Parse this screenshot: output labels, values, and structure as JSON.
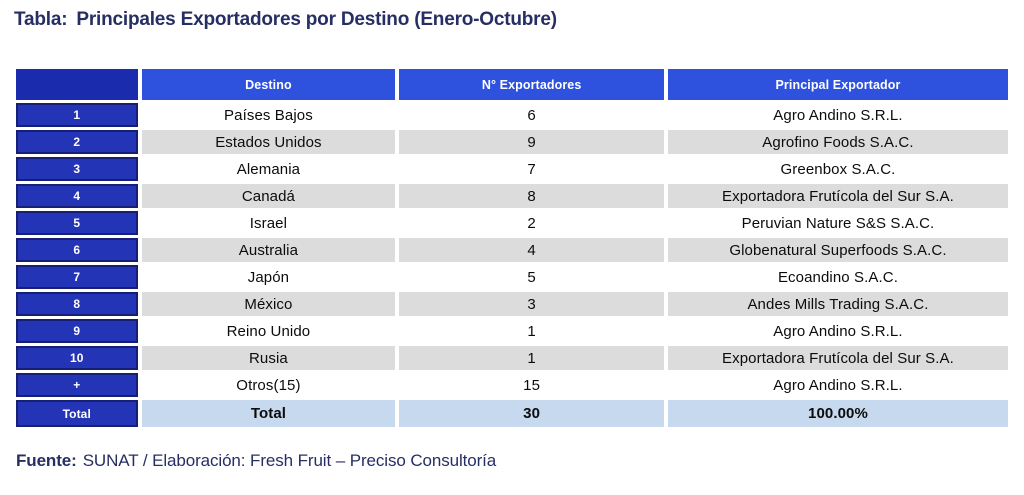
{
  "title": {
    "prefix": "Tabla:",
    "text": "Principales Exportadores por Destino (Enero-Octubre)"
  },
  "table": {
    "columns": [
      "",
      "Destino",
      "N° Exportadores",
      "Principal Exportador"
    ],
    "rows": [
      {
        "rank": "1",
        "destino": "Países Bajos",
        "exportadores": "6",
        "principal": "Agro Andino S.R.L."
      },
      {
        "rank": "2",
        "destino": "Estados Unidos",
        "exportadores": "9",
        "principal": "Agrofino Foods S.A.C."
      },
      {
        "rank": "3",
        "destino": "Alemania",
        "exportadores": "7",
        "principal": "Greenbox S.A.C."
      },
      {
        "rank": "4",
        "destino": "Canadá",
        "exportadores": "8",
        "principal": "Exportadora Frutícola del Sur S.A."
      },
      {
        "rank": "5",
        "destino": "Israel",
        "exportadores": "2",
        "principal": "Peruvian Nature S&S S.A.C."
      },
      {
        "rank": "6",
        "destino": "Australia",
        "exportadores": "4",
        "principal": "Globenatural Superfoods S.A.C."
      },
      {
        "rank": "7",
        "destino": "Japón",
        "exportadores": "5",
        "principal": "Ecoandino S.A.C."
      },
      {
        "rank": "8",
        "destino": "México",
        "exportadores": "3",
        "principal": "Andes Mills Trading S.A.C."
      },
      {
        "rank": "9",
        "destino": "Reino Unido",
        "exportadores": "1",
        "principal": "Agro Andino S.R.L."
      },
      {
        "rank": "10",
        "destino": "Rusia",
        "exportadores": "1",
        "principal": "Exportadora Frutícola del Sur S.A."
      },
      {
        "rank": "+",
        "destino": "Otros(15)",
        "exportadores": "15",
        "principal": "Agro Andino S.R.L."
      }
    ],
    "total_row": {
      "rank": "Total",
      "destino": "Total",
      "exportadores": "30",
      "principal": "100.00%"
    }
  },
  "footer": {
    "label": "Fuente:",
    "text": "SUNAT / Elaboración: Fresh Fruit – Preciso Consultoría"
  },
  "colors": {
    "title_navy": "#272e63",
    "header_blue": "#2e51de",
    "corner_dark_blue": "#1a2bae",
    "rank_cell_blue": "#2434b6",
    "rank_cell_border": "#161f73",
    "alt_row_gray": "#dcdcdc",
    "total_row_light_blue": "#c7d9ee",
    "text_black": "#0c0c0c"
  }
}
